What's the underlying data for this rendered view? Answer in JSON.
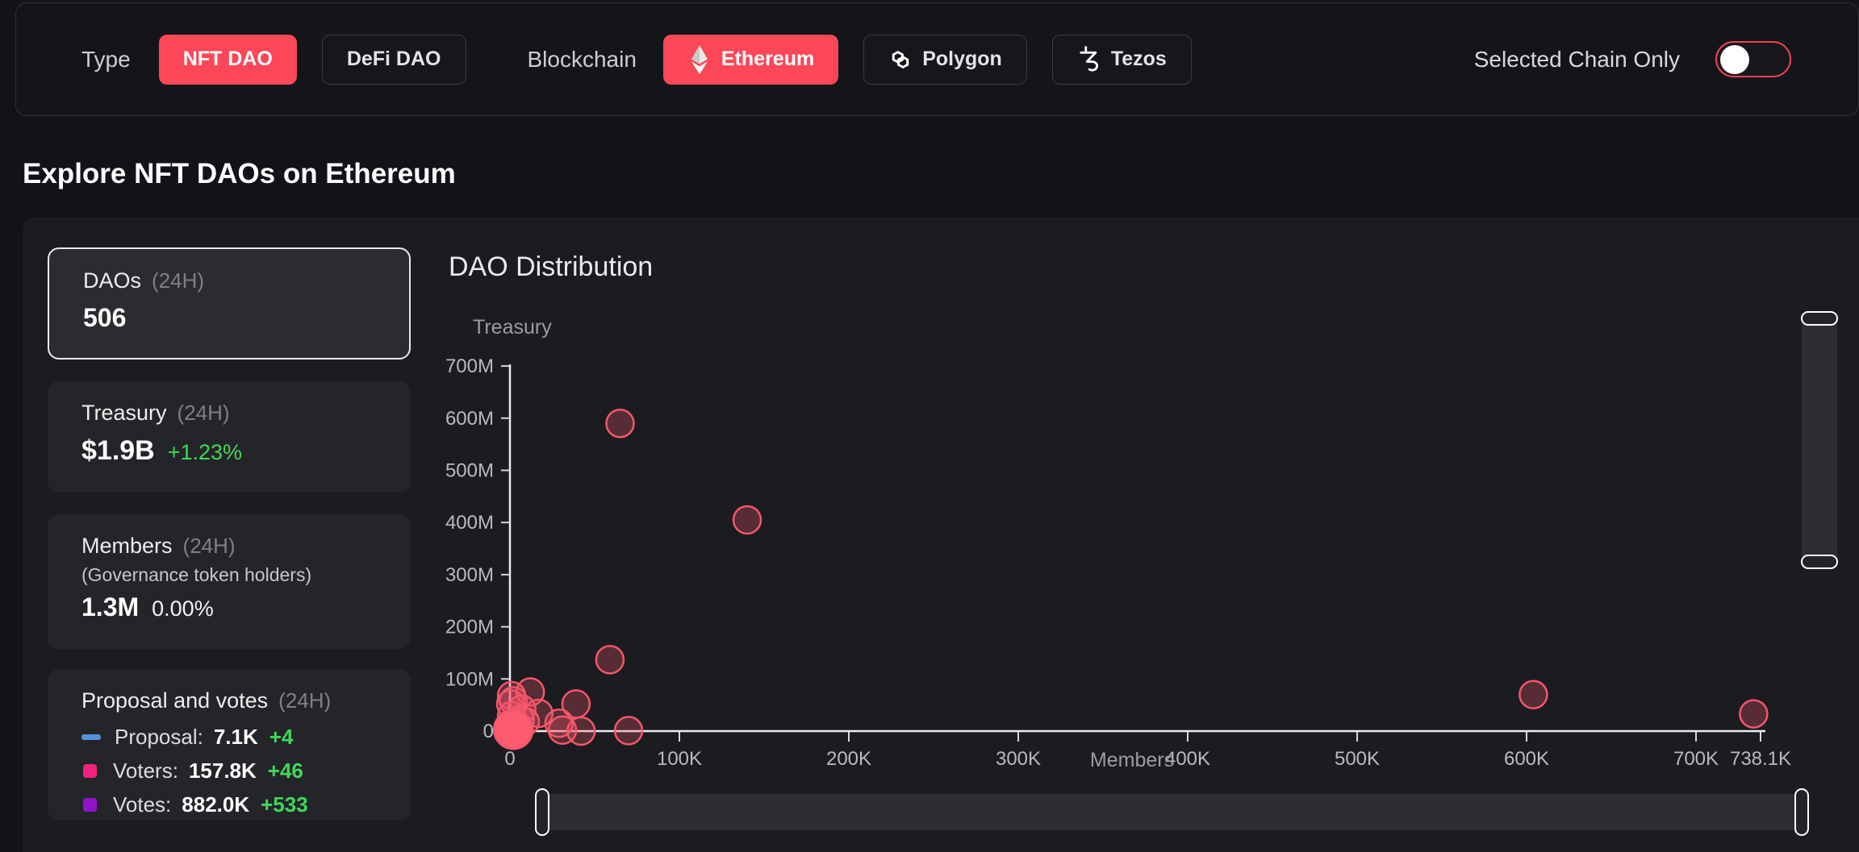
{
  "filter_bar": {
    "type_label": "Type",
    "type_options": [
      {
        "label": "NFT DAO",
        "active": true
      },
      {
        "label": "DeFi DAO",
        "active": false
      }
    ],
    "blockchain_label": "Blockchain",
    "blockchain_options": [
      {
        "label": "Ethereum",
        "icon": "ethereum-icon",
        "active": true
      },
      {
        "label": "Polygon",
        "icon": "polygon-icon",
        "active": false
      },
      {
        "label": "Tezos",
        "icon": "tezos-icon",
        "active": false
      }
    ],
    "selected_chain_only_label": "Selected Chain Only",
    "selected_chain_only_state": "off"
  },
  "page_title": "Explore NFT DAOs on Ethereum",
  "stats": {
    "daos": {
      "title": "DAOs",
      "period": "(24H)",
      "value": "506",
      "selected": true
    },
    "treasury": {
      "title": "Treasury",
      "period": "(24H)",
      "value": "$1.9B",
      "change": "+1.23%"
    },
    "members": {
      "title": "Members",
      "period": "(24H)",
      "subtitle": "(Governance token holders)",
      "value": "1.3M",
      "change": "0.00%"
    },
    "proposal_votes": {
      "title": "Proposal and votes",
      "period": "(24H)",
      "rows": [
        {
          "label": "Proposal:",
          "value": "7.1K",
          "delta": "+4",
          "marker": "dash",
          "color": "#5b8fd9"
        },
        {
          "label": "Voters:",
          "value": "157.8K",
          "delta": "+46",
          "marker": "square",
          "color": "#f2217e"
        },
        {
          "label": "Votes:",
          "value": "882.0K",
          "delta": "+533",
          "marker": "square",
          "color": "#9114cb"
        }
      ]
    }
  },
  "chart_data": {
    "type": "scatter",
    "title": "DAO Distribution",
    "xlabel": "Members",
    "ylabel": "Treasury",
    "xlim": [
      0,
      738100
    ],
    "ylim_millions": [
      0,
      700
    ],
    "x_tick_values": [
      0,
      100000,
      200000,
      300000,
      400000,
      500000,
      600000,
      700000,
      738100
    ],
    "x_tick_labels": [
      "0",
      "100K",
      "200K",
      "300K",
      "400K",
      "500K",
      "600K",
      "700K",
      "738.1K"
    ],
    "y_tick_values_millions": [
      0,
      100,
      200,
      300,
      400,
      500,
      600,
      700
    ],
    "y_tick_labels": [
      "0",
      "100M",
      "200M",
      "300M",
      "400M",
      "500M",
      "600M",
      "700M"
    ],
    "grid": false,
    "legend": "none",
    "point_stroke_color": "#f4566b",
    "point_fill_color": "rgba(244,86,107,0.28)",
    "dense_cluster_color": "#fd5b6e",
    "points": [
      {
        "members": 500,
        "treasury_millions": 52
      },
      {
        "members": 1000,
        "treasury_millions": 68
      },
      {
        "members": 2000,
        "treasury_millions": 58
      },
      {
        "members": 12000,
        "treasury_millions": 75
      },
      {
        "members": 7000,
        "treasury_millions": 42
      },
      {
        "members": 17000,
        "treasury_millions": 34
      },
      {
        "members": 6000,
        "treasury_millions": 22
      },
      {
        "members": 1000,
        "treasury_millions": 30
      },
      {
        "members": 3000,
        "treasury_millions": 12
      },
      {
        "members": 9000,
        "treasury_millions": 18
      },
      {
        "members": 29000,
        "treasury_millions": 15
      },
      {
        "members": 31000,
        "treasury_millions": 2
      },
      {
        "members": 42000,
        "treasury_millions": 0
      },
      {
        "members": 70000,
        "treasury_millions": 1
      },
      {
        "members": 39000,
        "treasury_millions": 52
      },
      {
        "members": 59000,
        "treasury_millions": 137
      },
      {
        "members": 65000,
        "treasury_millions": 590
      },
      {
        "members": 140000,
        "treasury_millions": 405
      },
      {
        "members": 604000,
        "treasury_millions": 70
      },
      {
        "members": 734000,
        "treasury_millions": 33
      },
      {
        "members": 2000,
        "treasury_millions": 3,
        "dense_cluster": true
      }
    ]
  },
  "colors": {
    "accent_red": "#fb4757",
    "positive_green": "#3fd75a",
    "proposal_blue": "#5b8fd9",
    "voters_pink": "#f2217e",
    "votes_purple": "#9114cb"
  }
}
